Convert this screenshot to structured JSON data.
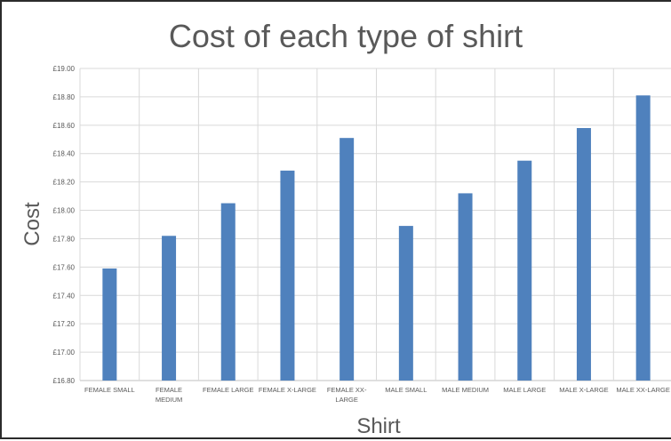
{
  "chart_data": {
    "type": "bar",
    "title": "Cost of each type of shirt",
    "xlabel": "Shirt",
    "ylabel": "Cost",
    "categories": [
      "FEMALE SMALL",
      "FEMALE MEDIUM",
      "FEMALE LARGE",
      "FEMALE X-LARGE",
      "FEMALE XX-LARGE",
      "MALE SMALL",
      "MALE MEDIUM",
      "MALE LARGE",
      "MALE X-LARGE",
      "MALE XX-LARGE"
    ],
    "category_label_lines": [
      [
        "FEMALE SMALL"
      ],
      [
        "FEMALE",
        "MEDIUM"
      ],
      [
        "FEMALE LARGE"
      ],
      [
        "FEMALE X-LARGE"
      ],
      [
        "FEMALE XX-",
        "LARGE"
      ],
      [
        "MALE SMALL"
      ],
      [
        "MALE MEDIUM"
      ],
      [
        "MALE LARGE"
      ],
      [
        "MALE X-LARGE"
      ],
      [
        "MALE XX-LARGE"
      ]
    ],
    "series": [
      {
        "values": [
          17.59,
          17.82,
          18.05,
          18.28,
          18.51,
          17.89,
          18.12,
          18.35,
          18.58,
          18.81
        ]
      }
    ],
    "ylim": [
      16.8,
      19.0
    ],
    "ytick_step": 0.2,
    "ytick_labels": [
      "£16.80",
      "£17.00",
      "£17.20",
      "£17.40",
      "£17.60",
      "£17.80",
      "£18.00",
      "£18.20",
      "£18.40",
      "£18.60",
      "£18.80",
      "£19.00"
    ],
    "grid": true,
    "legend": "none",
    "bar_color": "#4f81bd"
  }
}
